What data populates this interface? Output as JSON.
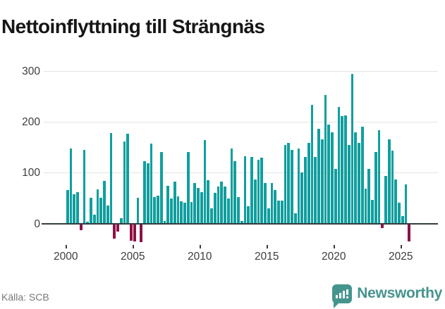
{
  "title": "Nettoinflyttning till Strängnäs",
  "source": "Källa: SCB",
  "branding": {
    "name": "Newsworthy",
    "icon": "speech-bubble-bar-chart"
  },
  "colors": {
    "positive_bar": "#119e9e",
    "negative_bar": "#8e1148",
    "gridline": "#e4e4e4",
    "zero_line": "#333d40",
    "axis_label": "#3d3d3d",
    "title": "#161616",
    "source_text": "#787878",
    "brand": "#46948e",
    "background": "#ffffff"
  },
  "chart_data": {
    "type": "bar",
    "title": "Nettoinflyttning till Strängnäs",
    "xlabel": "",
    "ylabel": "",
    "frequency": "quarterly",
    "start": "2000-Q1",
    "end": "2025-Q3",
    "x_tick_labels": [
      "2000",
      "2005",
      "2010",
      "2015",
      "2020",
      "2025"
    ],
    "y_tick_labels": [
      "300",
      "200",
      "100",
      "0"
    ],
    "ylim": [
      -50,
      310
    ],
    "grid": true,
    "legend": false,
    "by_year": {
      "2000": [
        66,
        147,
        58,
        62
      ],
      "2001": [
        -12,
        145,
        4,
        51
      ],
      "2002": [
        17,
        67,
        50,
        84
      ],
      "2003": [
        36,
        178,
        -28,
        -14
      ],
      "2004": [
        11,
        161,
        177,
        -33
      ],
      "2005": [
        -34,
        50,
        -36,
        122
      ],
      "2006": [
        118,
        157,
        52,
        55
      ],
      "2007": [
        140,
        5,
        74,
        49
      ],
      "2008": [
        83,
        53,
        43,
        41
      ],
      "2009": [
        140,
        42,
        80,
        70
      ],
      "2010": [
        62,
        164,
        85,
        30
      ],
      "2011": [
        60,
        73,
        82,
        73
      ],
      "2012": [
        49,
        147,
        122,
        52
      ],
      "2013": [
        5,
        133,
        34,
        131
      ],
      "2014": [
        86,
        125,
        130,
        80
      ],
      "2015": [
        30,
        80,
        66,
        45
      ],
      "2016": [
        45,
        155,
        158,
        145
      ],
      "2017": [
        20,
        147,
        100,
        131
      ],
      "2018": [
        159,
        234,
        131,
        186
      ],
      "2019": [
        166,
        253,
        194,
        179
      ],
      "2020": [
        107,
        229,
        212,
        213
      ],
      "2021": [
        155,
        294,
        179,
        159
      ],
      "2022": [
        190,
        68,
        107,
        46
      ],
      "2023": [
        141,
        183,
        -8,
        93
      ],
      "2024": [
        166,
        144,
        86,
        41
      ],
      "2025": [
        15,
        77,
        -34
      ]
    }
  }
}
